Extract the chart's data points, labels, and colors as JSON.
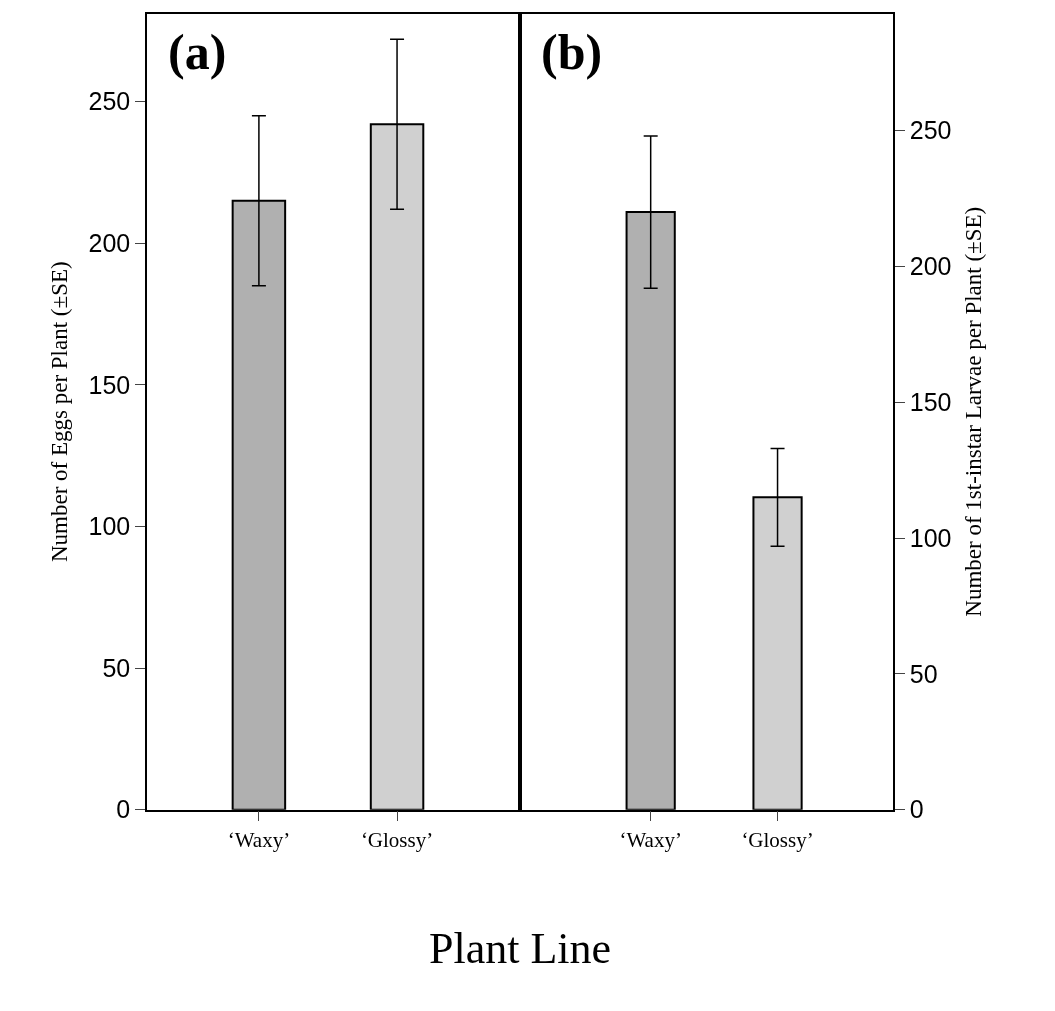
{
  "chart_data": [
    {
      "type": "bar",
      "categories": [
        "‘Waxy’",
        "‘Glossy’"
      ],
      "values": [
        215,
        242
      ],
      "errors": [
        30,
        30
      ],
      "colors": [
        "#b0b0b0",
        "#d0d0d0"
      ],
      "ylabel": "Number of Eggs per Plant (±SE)",
      "xlabel": "Plant Line",
      "ylim": [
        0,
        281
      ],
      "yticks": [
        0,
        50,
        100,
        150,
        200,
        250
      ],
      "annotations": [
        "(a)"
      ]
    },
    {
      "type": "bar",
      "categories": [
        "‘Waxy’",
        "‘Glossy’"
      ],
      "values": [
        220,
        115
      ],
      "errors": [
        28,
        18
      ],
      "colors": [
        "#b0b0b0",
        "#d0d0d0"
      ],
      "ylabel": "Number of 1st-instar Larvae per Plant (±SE)",
      "ylim": [
        0,
        293
      ],
      "yticks": [
        0,
        50,
        100,
        150,
        200,
        250
      ],
      "annotations": [
        "(b)"
      ]
    }
  ]
}
